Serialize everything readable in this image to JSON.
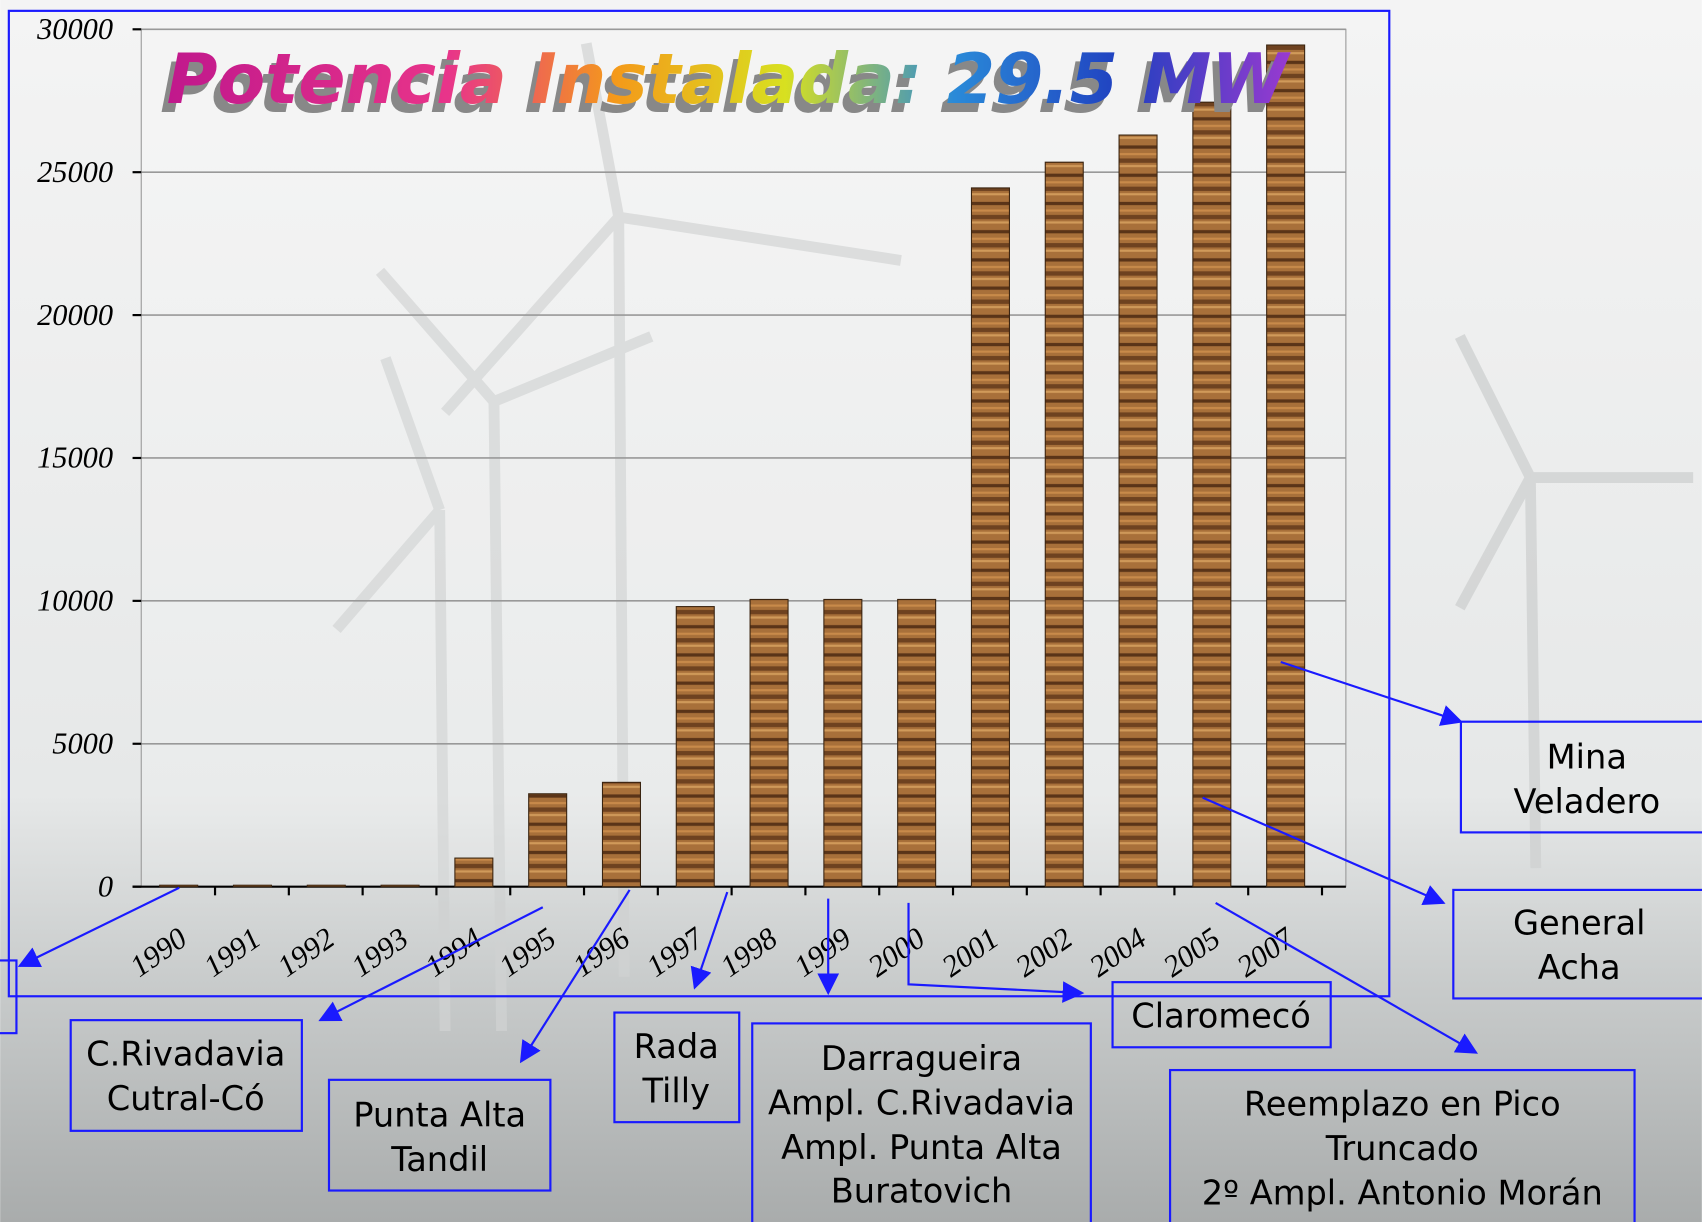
{
  "chart_data": {
    "type": "bar",
    "title": "Potencia Instalada: 29.5 MW",
    "categories": [
      "1990",
      "1991",
      "1992",
      "1993",
      "1994",
      "1995",
      "1996",
      "1997",
      "1998",
      "1999",
      "2000",
      "2001",
      "2002",
      "2004",
      "2005",
      "2007"
    ],
    "values": [
      50,
      50,
      50,
      50,
      1000,
      3250,
      3650,
      9800,
      10050,
      10050,
      10050,
      24450,
      25350,
      26300,
      27450,
      29450
    ],
    "color": "#8b5a2b",
    "ylim": [
      0,
      30000
    ],
    "yticks": [
      0,
      5000,
      10000,
      15000,
      20000,
      25000,
      30000
    ],
    "grid": true,
    "annotations": [
      {
        "lines": [
          "C.Rivadavia",
          "Cutral-Có"
        ]
      },
      {
        "lines": [
          "Punta Alta",
          "Tandil"
        ]
      },
      {
        "lines": [
          "Rada",
          "Tilly"
        ]
      },
      {
        "lines": [
          "Darragueira",
          "Ampl. C.Rivadavia",
          "Ampl. Punta Alta",
          "Buratovich"
        ]
      },
      {
        "lines": [
          "Claromecó"
        ]
      },
      {
        "lines": [
          "Reemplazo en Pico",
          "Truncado",
          "2º Ampl. Antonio Morán"
        ]
      },
      {
        "lines": [
          "Mina",
          "Veladero"
        ]
      },
      {
        "lines": [
          "General",
          "Acha"
        ]
      }
    ]
  }
}
